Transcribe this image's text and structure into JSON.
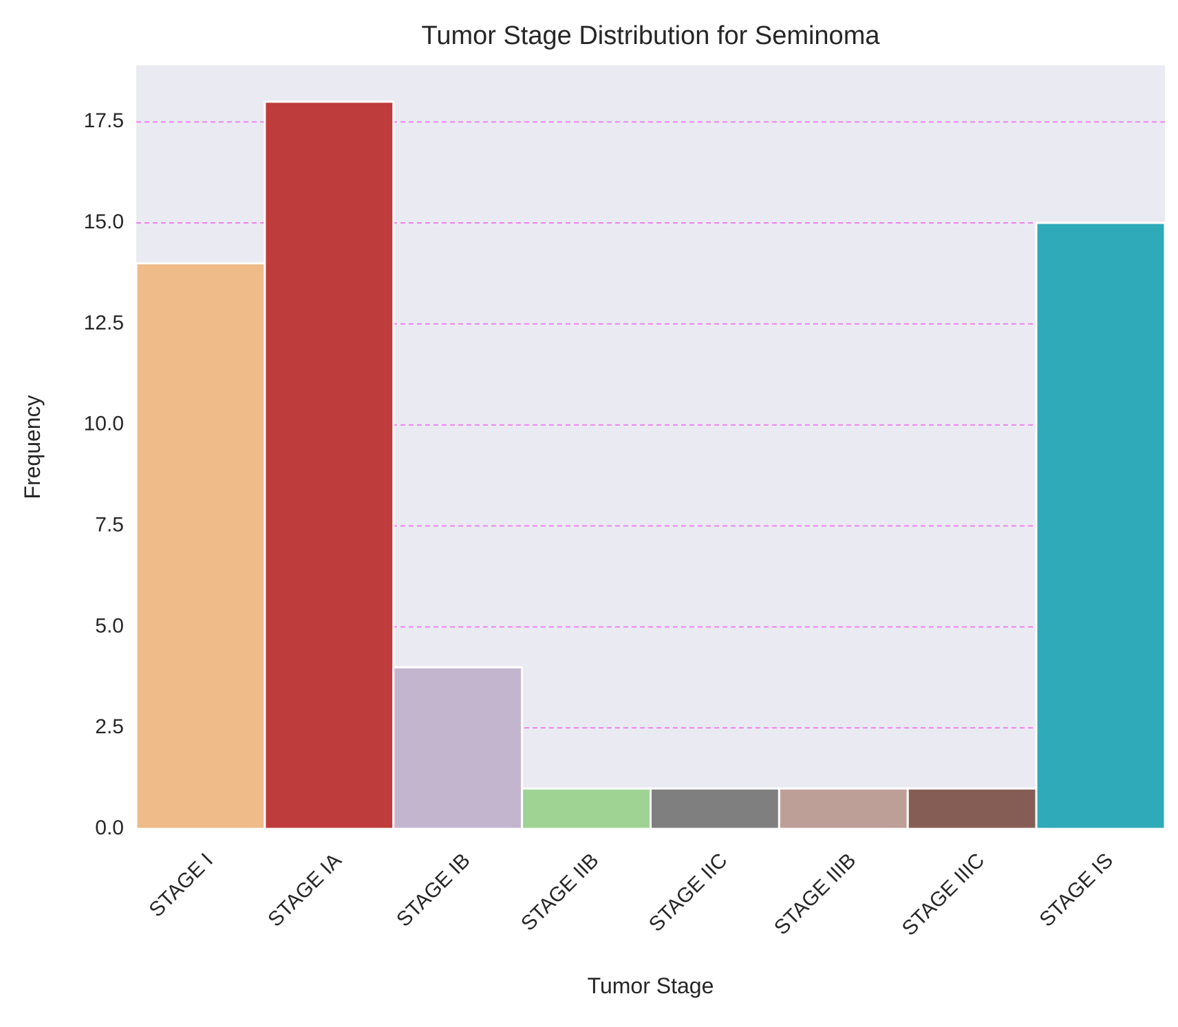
{
  "chart_data": {
    "type": "bar",
    "title": "Tumor Stage Distribution for Seminoma",
    "xlabel": "Tumor Stage",
    "ylabel": "Frequency",
    "categories": [
      "STAGE I",
      "STAGE IA",
      "STAGE IB",
      "STAGE IIB",
      "STAGE IIC",
      "STAGE IIIB",
      "STAGE IIIC",
      "STAGE IS"
    ],
    "values": [
      14,
      18,
      4,
      1,
      1,
      1,
      1,
      15
    ],
    "colors": [
      "#efbb89",
      "#bf3c3c",
      "#c4b5cf",
      "#9fd393",
      "#7f7f7f",
      "#bd9f98",
      "#865d54",
      "#2eaab8"
    ],
    "ylim": [
      0,
      18.9
    ],
    "yticks": [
      "0.0",
      "2.5",
      "5.0",
      "7.5",
      "10.0",
      "12.5",
      "15.0",
      "17.5"
    ],
    "grid": "horizontal dashed",
    "grid_color": "#ee82ee",
    "plot_background": "#eaeaf2"
  }
}
